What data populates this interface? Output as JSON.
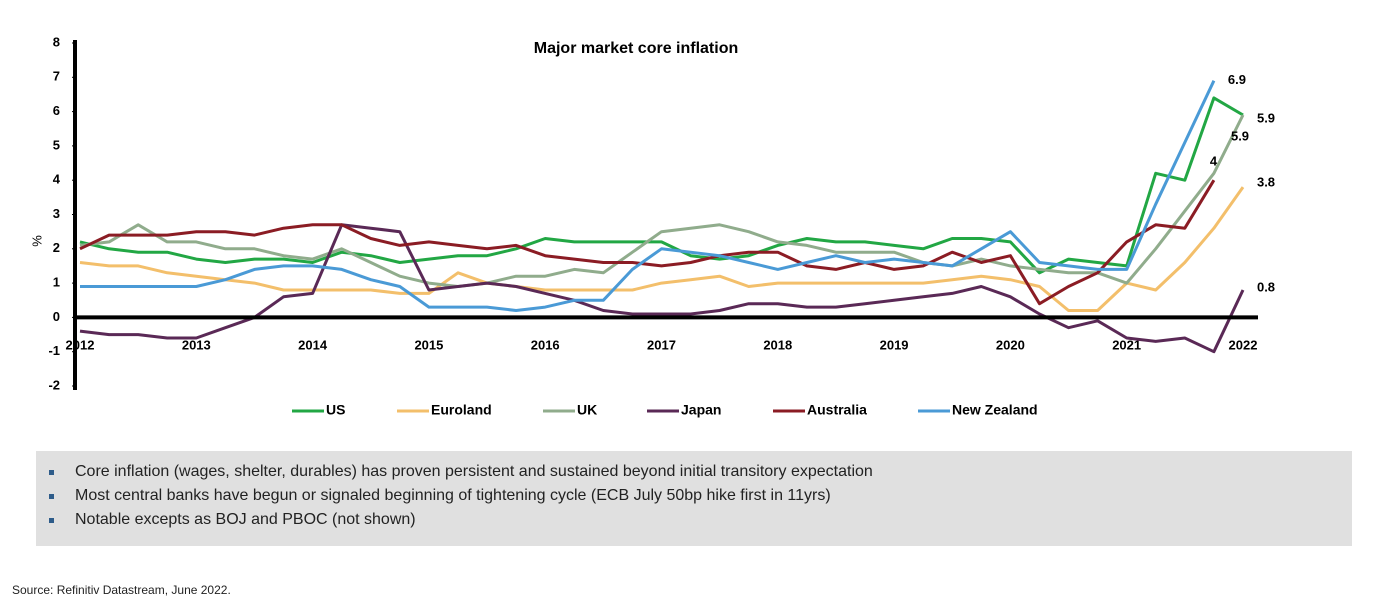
{
  "chart_data": {
    "type": "line",
    "title": "Major market core inflation",
    "y_label": "%",
    "x": [
      2012,
      2012.25,
      2012.5,
      2012.75,
      2013,
      2013.25,
      2013.5,
      2013.75,
      2014,
      2014.25,
      2014.5,
      2014.75,
      2015,
      2015.25,
      2015.5,
      2015.75,
      2016,
      2016.25,
      2016.5,
      2016.75,
      2017,
      2017.25,
      2017.5,
      2017.75,
      2018,
      2018.25,
      2018.5,
      2018.75,
      2019,
      2019.25,
      2019.5,
      2019.75,
      2020,
      2020.25,
      2020.5,
      2020.75,
      2021,
      2021.25,
      2021.5,
      2021.75,
      2022
    ],
    "xlim": [
      2011.95,
      2022.1
    ],
    "xticks": [
      2012,
      2013,
      2014,
      2015,
      2016,
      2017,
      2018,
      2019,
      2020,
      2021,
      2022
    ],
    "ylim": [
      -2,
      8
    ],
    "yticks": [
      -2,
      -1,
      0,
      1,
      2,
      3,
      4,
      5,
      6,
      7,
      8
    ],
    "series": [
      {
        "name": "US",
        "color": "#22a744",
        "end_label": "5.9",
        "values": [
          2.2,
          2.0,
          1.9,
          1.9,
          1.7,
          1.6,
          1.7,
          1.7,
          1.6,
          1.9,
          1.8,
          1.6,
          1.7,
          1.8,
          1.8,
          2.0,
          2.3,
          2.2,
          2.2,
          2.2,
          2.2,
          1.8,
          1.7,
          1.8,
          2.1,
          2.3,
          2.2,
          2.2,
          2.1,
          2.0,
          2.3,
          2.3,
          2.2,
          1.3,
          1.7,
          1.6,
          1.5,
          4.2,
          4.0,
          6.4,
          5.9
        ]
      },
      {
        "name": "Euroland",
        "color": "#f3bf6b",
        "end_label": "3.8",
        "values": [
          1.6,
          1.5,
          1.5,
          1.3,
          1.2,
          1.1,
          1.0,
          0.8,
          0.8,
          0.8,
          0.8,
          0.7,
          0.7,
          1.3,
          1.0,
          0.9,
          0.8,
          0.8,
          0.8,
          0.8,
          1.0,
          1.1,
          1.2,
          0.9,
          1.0,
          1.0,
          1.0,
          1.0,
          1.0,
          1.0,
          1.1,
          1.2,
          1.1,
          0.9,
          0.2,
          0.2,
          1.0,
          0.8,
          1.6,
          2.6,
          3.8
        ]
      },
      {
        "name": "UK",
        "color": "#90ac8c",
        "end_label": "5.9",
        "values": [
          2.1,
          2.2,
          2.7,
          2.2,
          2.2,
          2.0,
          2.0,
          1.8,
          1.7,
          2.0,
          1.6,
          1.2,
          1.0,
          0.9,
          1.0,
          1.2,
          1.2,
          1.4,
          1.3,
          1.9,
          2.5,
          2.6,
          2.7,
          2.5,
          2.2,
          2.1,
          1.9,
          1.9,
          1.9,
          1.6,
          1.5,
          1.7,
          1.5,
          1.4,
          1.3,
          1.3,
          1.0,
          2.0,
          3.1,
          4.2,
          5.9
        ]
      },
      {
        "name": "Japan",
        "color": "#5a2956",
        "end_label": "0.8",
        "values": [
          -0.4,
          -0.5,
          -0.5,
          -0.6,
          -0.6,
          -0.3,
          0.0,
          0.6,
          0.7,
          2.7,
          2.6,
          2.5,
          0.8,
          0.9,
          1.0,
          0.9,
          0.7,
          0.5,
          0.2,
          0.1,
          0.1,
          0.1,
          0.2,
          0.4,
          0.4,
          0.3,
          0.3,
          0.4,
          0.5,
          0.6,
          0.7,
          0.9,
          0.6,
          0.1,
          -0.3,
          -0.1,
          -0.6,
          -0.7,
          -0.6,
          -1.0,
          0.8
        ]
      },
      {
        "name": "Australia",
        "color": "#8b1c24",
        "end_label": "4",
        "values": [
          2.0,
          2.4,
          2.4,
          2.4,
          2.5,
          2.5,
          2.4,
          2.6,
          2.7,
          2.7,
          2.3,
          2.1,
          2.2,
          2.1,
          2.0,
          2.1,
          1.8,
          1.7,
          1.6,
          1.6,
          1.5,
          1.6,
          1.8,
          1.9,
          1.9,
          1.5,
          1.4,
          1.6,
          1.4,
          1.5,
          1.9,
          1.6,
          1.8,
          0.4,
          0.9,
          1.3,
          2.2,
          2.7,
          2.6,
          4.0,
          null
        ]
      },
      {
        "name": "New Zealand",
        "color": "#4a9ad6",
        "end_label": "6.9",
        "values": [
          0.9,
          0.9,
          0.9,
          0.9,
          0.9,
          1.1,
          1.4,
          1.5,
          1.5,
          1.4,
          1.1,
          0.9,
          0.3,
          0.3,
          0.3,
          0.2,
          0.3,
          0.5,
          0.5,
          1.4,
          2.0,
          1.9,
          1.8,
          1.6,
          1.4,
          1.6,
          1.8,
          1.6,
          1.7,
          1.6,
          1.5,
          2.0,
          2.5,
          1.6,
          1.5,
          1.4,
          1.4,
          3.3,
          5.1,
          6.9,
          null
        ]
      }
    ]
  },
  "notes": [
    "Core inflation (wages, shelter, durables) has proven persistent and sustained beyond initial transitory expectation",
    "Most central banks have begun or signaled beginning of tightening cycle (ECB July 50bp hike first in 11yrs)",
    "Notable excepts as BOJ and PBOC (not shown)"
  ],
  "source": "Source: Refinitiv Datastream, June 2022."
}
